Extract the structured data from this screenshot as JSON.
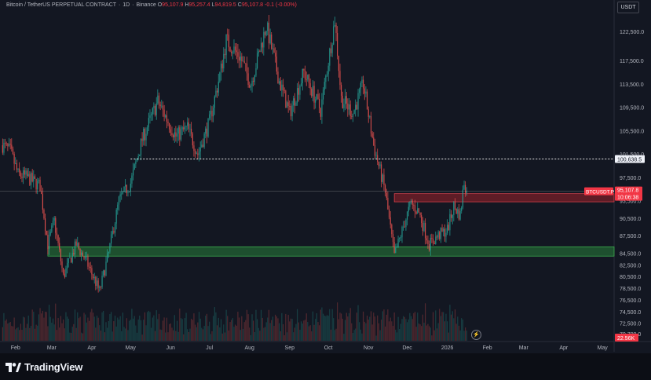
{
  "header": {
    "symbol": "Bitcoin / TetherUS PERPETUAL CONTRACT",
    "interval": "1D",
    "exchange": "Binance",
    "open_label": "O",
    "open": "95,107.9",
    "high_label": "H",
    "high": "95,257.4",
    "low_label": "L",
    "low": "94,819.5",
    "close_label": "C",
    "close": "95,107.8",
    "change": "-0.1 (-0.00%)"
  },
  "currency_button": "USDT",
  "footer": {
    "brand": "TradingView"
  },
  "alert_icon": "lightning-icon",
  "colors": {
    "background": "#131722",
    "up": "#26a69a",
    "down": "#ef5350",
    "zone_green": "#1e6b2a",
    "zone_red": "#7a1d22",
    "price_tag": "#f23645",
    "text": "#b2b5be"
  },
  "chart_data": {
    "type": "candlestick",
    "symbol": "BTCUSDT.P",
    "y_ticks": [
      "122,500.0",
      "117,500.0",
      "113,500.0",
      "109,500.0",
      "105,500.0",
      "101,500.0",
      "97,500.0",
      "93,500.0",
      "90,500.0",
      "87,500.0",
      "84,500.0",
      "82,500.0",
      "80,500.0",
      "78,500.0",
      "76,500.0",
      "74,500.0",
      "72,500.0",
      "70,700.0"
    ],
    "x_ticks": [
      "Feb",
      "Mar",
      "Apr",
      "May",
      "Jun",
      "Jul",
      "Aug",
      "Sep",
      "Oct",
      "Nov",
      "Dec",
      "2026",
      "Feb",
      "Mar",
      "Apr",
      "May"
    ],
    "ylim": [
      69500,
      126000
    ],
    "xlim": [
      "2025-01-20",
      "2026-05-10"
    ],
    "close_path": [
      [
        "2025-01-22",
        103000
      ],
      [
        "2025-01-28",
        102000
      ],
      [
        "2025-02-03",
        98000
      ],
      [
        "2025-02-10",
        97500
      ],
      [
        "2025-02-20",
        96000
      ],
      [
        "2025-02-26",
        86000
      ],
      [
        "2025-03-03",
        90000
      ],
      [
        "2025-03-10",
        80500
      ],
      [
        "2025-03-20",
        86000
      ],
      [
        "2025-03-28",
        83000
      ],
      [
        "2025-04-07",
        78000
      ],
      [
        "2025-04-14",
        84500
      ],
      [
        "2025-04-22",
        93500
      ],
      [
        "2025-05-01",
        96500
      ],
      [
        "2025-05-10",
        104000
      ],
      [
        "2025-05-22",
        110500
      ],
      [
        "2025-06-05",
        104500
      ],
      [
        "2025-06-14",
        106000
      ],
      [
        "2025-06-22",
        101500
      ],
      [
        "2025-07-01",
        107000
      ],
      [
        "2025-07-10",
        116000
      ],
      [
        "2025-07-14",
        121000
      ],
      [
        "2025-07-25",
        118000
      ],
      [
        "2025-08-02",
        113500
      ],
      [
        "2025-08-14",
        123500
      ],
      [
        "2025-08-24",
        114000
      ],
      [
        "2025-09-01",
        108500
      ],
      [
        "2025-09-12",
        115500
      ],
      [
        "2025-09-25",
        109000
      ],
      [
        "2025-10-06",
        124500
      ],
      [
        "2025-10-11",
        111000
      ],
      [
        "2025-10-20",
        108500
      ],
      [
        "2025-10-28",
        113500
      ],
      [
        "2025-11-05",
        103000
      ],
      [
        "2025-11-14",
        95000
      ],
      [
        "2025-11-21",
        84000
      ],
      [
        "2025-11-30",
        90500
      ],
      [
        "2025-12-04",
        93000
      ],
      [
        "2025-12-10",
        91500
      ],
      [
        "2025-12-18",
        86000
      ],
      [
        "2025-12-25",
        87500
      ],
      [
        "2026-01-01",
        88500
      ],
      [
        "2026-01-06",
        92500
      ],
      [
        "2026-01-11",
        91000
      ],
      [
        "2026-01-14",
        96800
      ],
      [
        "2026-01-16",
        95107.8
      ]
    ],
    "levels": [
      {
        "label": "100,638.5",
        "value": 100638.5,
        "style": "dotted",
        "from": "2025-05-01"
      }
    ],
    "zones": [
      {
        "color": "green",
        "from": "2025-02-26",
        "y": [
          84000,
          85600
        ]
      },
      {
        "color": "red",
        "from": "2025-11-21",
        "y": [
          93300,
          94700
        ]
      }
    ],
    "last_price_tag": {
      "symbol": "BTCUSDT.P",
      "price": "95,107.8",
      "countdown": "10:06:38"
    },
    "volume_label": "22.56K"
  }
}
